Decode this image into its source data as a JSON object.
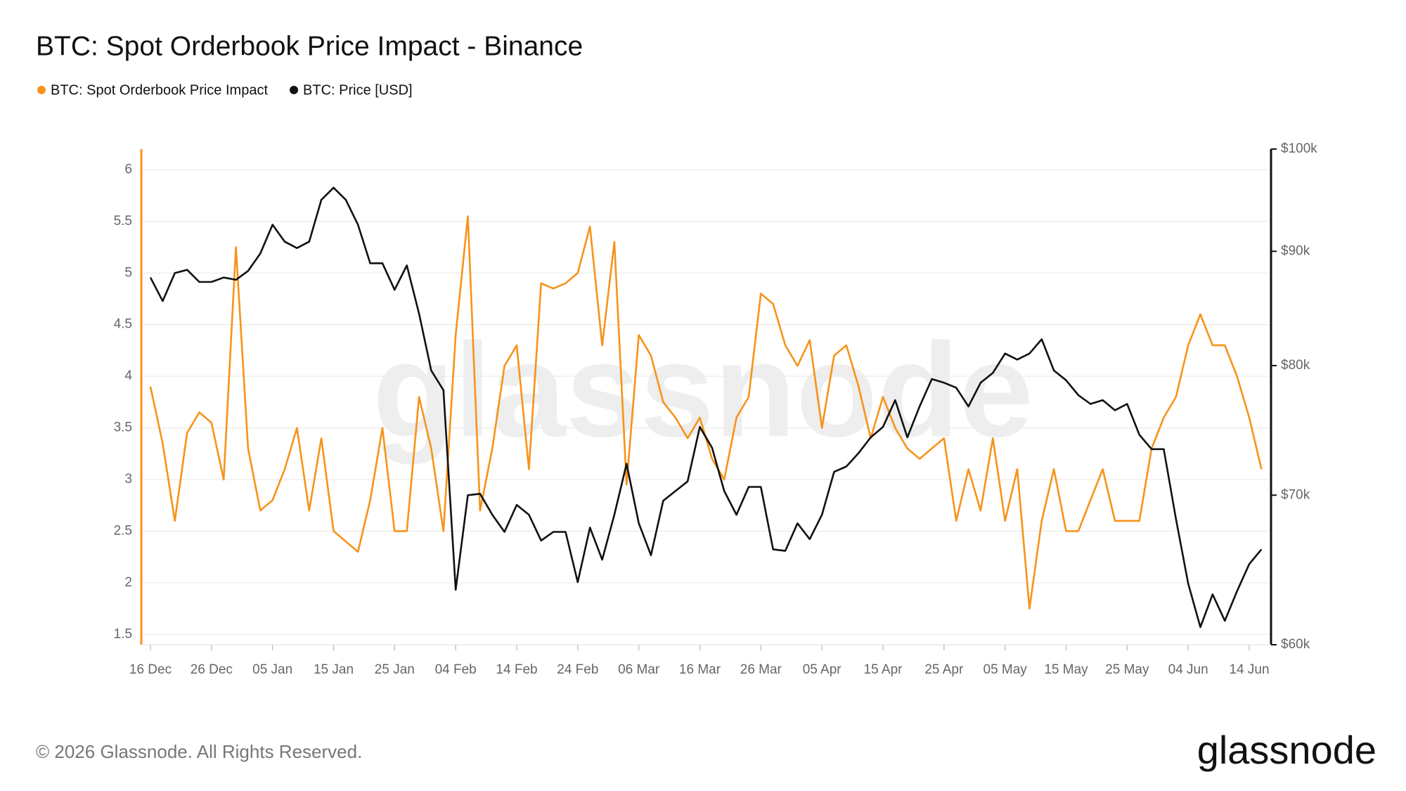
{
  "chart_data": {
    "type": "line",
    "title": "BTC: Spot Orderbook Price Impact - Binance",
    "watermark": "glassnode",
    "footer": "© 2026 Glassnode. All Rights Reserved.",
    "logo": "glassnode",
    "categories": [
      "16 Dec",
      null,
      null,
      null,
      null,
      "26 Dec",
      null,
      null,
      null,
      null,
      "05 Jan",
      null,
      null,
      null,
      null,
      "15 Jan",
      null,
      null,
      null,
      null,
      "25 Jan",
      null,
      null,
      null,
      null,
      "04 Feb",
      null,
      null,
      null,
      null,
      "14 Feb",
      null,
      null,
      null,
      null,
      "24 Feb",
      null,
      null,
      null,
      null,
      "06 Mar",
      null,
      null,
      null,
      null,
      "16 Mar",
      null,
      null,
      null,
      null,
      "26 Mar",
      null,
      null,
      null,
      null,
      "05 Apr",
      null,
      null,
      null,
      null,
      "15 Apr",
      null,
      null,
      null,
      null,
      "25 Apr",
      null,
      null,
      null,
      null,
      "05 May",
      null,
      null,
      null,
      null,
      "15 May",
      null,
      null,
      null,
      null,
      "25 May",
      null,
      null,
      null,
      null,
      "04 Jun",
      null,
      null,
      null,
      null,
      "14 Jun",
      null
    ],
    "ylim": [
      1.4,
      6.2
    ],
    "yticks": [
      1.5,
      2,
      2.5,
      3,
      3.5,
      4,
      4.5,
      5,
      5.5,
      6
    ],
    "y2lim": [
      60000,
      100000
    ],
    "y2log": true,
    "y2ticks": [
      {
        "value": 60000,
        "label": "$60k"
      },
      {
        "value": 70000,
        "label": "$70k"
      },
      {
        "value": 80000,
        "label": "$80k"
      },
      {
        "value": 90000,
        "label": "$90k"
      },
      {
        "value": 100000,
        "label": "$100k"
      }
    ],
    "grid": true,
    "series": [
      {
        "name": "BTC: Spot Orderbook Price Impact",
        "color": "#f7931a",
        "axis": "y",
        "values": [
          3.9,
          3.35,
          2.6,
          3.45,
          3.65,
          3.55,
          3.0,
          5.25,
          3.3,
          2.7,
          2.8,
          3.1,
          3.5,
          2.7,
          3.4,
          2.5,
          2.4,
          2.3,
          2.8,
          3.5,
          2.5,
          2.5,
          3.8,
          3.3,
          2.5,
          4.4,
          5.55,
          2.7,
          3.3,
          4.1,
          4.3,
          3.1,
          4.9,
          4.85,
          4.9,
          5.0,
          5.45,
          4.3,
          5.3,
          2.95,
          4.4,
          4.2,
          3.75,
          3.6,
          3.4,
          3.6,
          3.2,
          3.0,
          3.6,
          3.8,
          4.8,
          4.7,
          4.3,
          4.1,
          4.35,
          3.5,
          4.2,
          4.3,
          3.9,
          3.4,
          3.8,
          3.5,
          3.3,
          3.2,
          3.3,
          3.4,
          2.6,
          3.1,
          2.7,
          3.4,
          2.6,
          3.1,
          1.75,
          2.6,
          3.1,
          2.5,
          2.5,
          2.8,
          3.1,
          2.6,
          2.6,
          2.6,
          3.3,
          3.6,
          3.8,
          4.3,
          4.6,
          4.3,
          4.3,
          4.0,
          3.6,
          3.1
        ]
      },
      {
        "name": "BTC: Price [USD]",
        "color": "#111111",
        "axis": "y2",
        "values": [
          87600,
          85500,
          88000,
          88300,
          87200,
          87200,
          87600,
          87400,
          88200,
          89800,
          92500,
          90900,
          90300,
          90900,
          94900,
          96100,
          94900,
          92500,
          88900,
          88900,
          86500,
          88700,
          84400,
          79600,
          78000,
          63500,
          70000,
          70100,
          68600,
          67400,
          69300,
          68600,
          66800,
          67400,
          67400,
          64000,
          67700,
          65500,
          68600,
          72300,
          68000,
          65800,
          69600,
          70300,
          71000,
          75100,
          73500,
          70300,
          68600,
          70600,
          70600,
          66200,
          66100,
          68000,
          66900,
          68600,
          71700,
          72100,
          73100,
          74300,
          75100,
          77200,
          74300,
          76700,
          78900,
          78600,
          78200,
          76700,
          78600,
          79400,
          81000,
          80500,
          81000,
          82200,
          79600,
          78800,
          77600,
          76900,
          77200,
          76400,
          76900,
          74500,
          73400,
          73400,
          68300,
          63900,
          61100,
          63200,
          61500,
          63400,
          65200,
          66200
        ]
      }
    ]
  }
}
